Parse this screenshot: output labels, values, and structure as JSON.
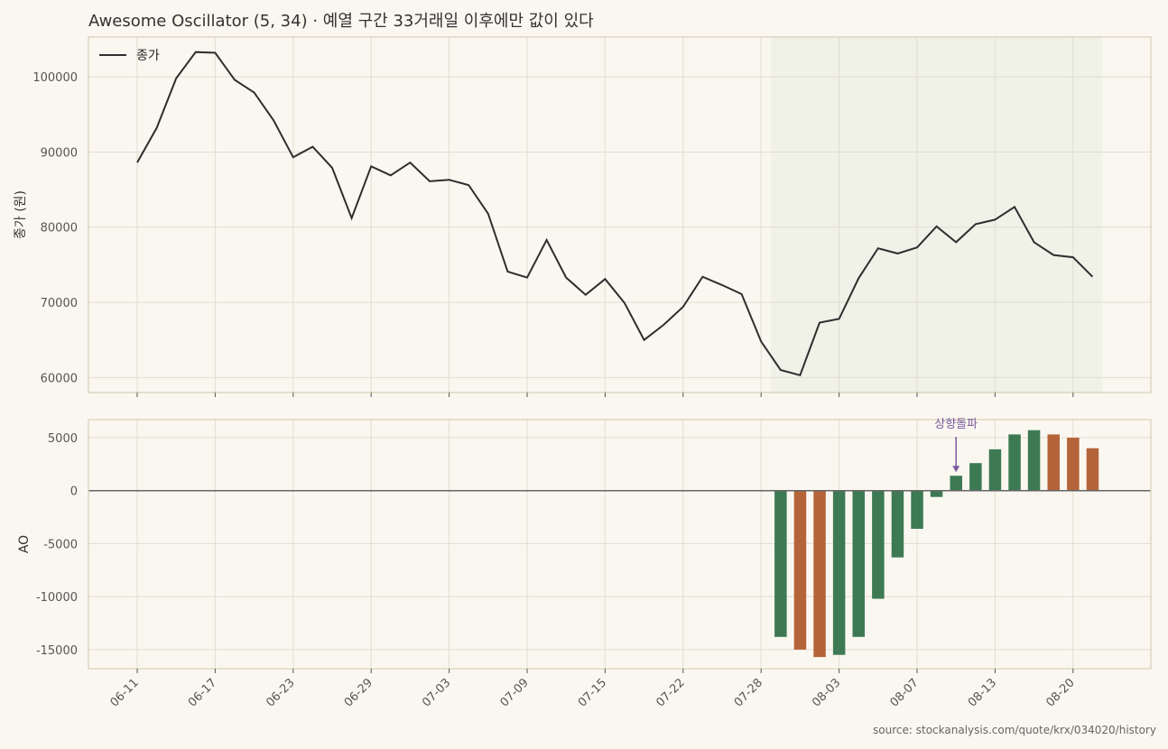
{
  "chart_data": {
    "type": "line+bar",
    "title": "Awesome Oscillator (5, 34) · 예열 구간 33거래일 이후에만 값이 있다",
    "source": "source: stockanalysis.com/quote/krx/034020/history",
    "x_tick_labels": [
      "06-11",
      "06-17",
      "06-23",
      "06-29",
      "07-03",
      "07-09",
      "07-15",
      "07-22",
      "07-28",
      "08-03",
      "08-07",
      "08-13",
      "08-20"
    ],
    "price_panel": {
      "ylabel": "종가 (원)",
      "legend": "종가",
      "legend_position": "upper-left",
      "yticks": [
        60000,
        70000,
        80000,
        90000,
        100000
      ],
      "ylim": [
        58000,
        105300
      ],
      "shaded_region": "AO available (trading days 34-50)",
      "values": [
        88600,
        93200,
        99800,
        103300,
        103200,
        99600,
        97900,
        94200,
        89300,
        90700,
        87900,
        81200,
        88100,
        86900,
        88600,
        86100,
        86300,
        85600,
        81800,
        74100,
        73300,
        78300,
        73300,
        71000,
        73100,
        69900,
        65000,
        67000,
        69400,
        73400,
        72300,
        71100,
        64800,
        61000,
        60300,
        67300,
        67800,
        73200,
        77200,
        76500,
        77300,
        80100,
        78000,
        80400,
        81000,
        82700,
        78000,
        76300,
        76000,
        73400
      ]
    },
    "ao_panel": {
      "ylabel": "AO",
      "yticks": [
        5000,
        0,
        -5000,
        -10000,
        -15000
      ],
      "ylim": [
        -16800,
        6700
      ],
      "bar_colors": {
        "rising": "#3d7a54",
        "falling": "#b5643a"
      },
      "annotation": "상향돌파",
      "annotation_index": 42,
      "values": [
        -13800,
        -15000,
        -15700,
        -15500,
        -13800,
        -10200,
        -6300,
        -3600,
        -600,
        1400,
        2600,
        3900,
        5300,
        5700,
        5300,
        5000,
        4000
      ],
      "directions": [
        "rising",
        "falling",
        "falling",
        "rising",
        "rising",
        "rising",
        "rising",
        "rising",
        "rising",
        "rising",
        "rising",
        "rising",
        "rising",
        "rising",
        "falling",
        "falling",
        "falling"
      ]
    }
  },
  "colors": {
    "background": "#faf7f0",
    "frame": "#d8cfb8",
    "grid": "#e2ddd0",
    "line": "#2e2e2e",
    "shade": "#eef0e6"
  }
}
